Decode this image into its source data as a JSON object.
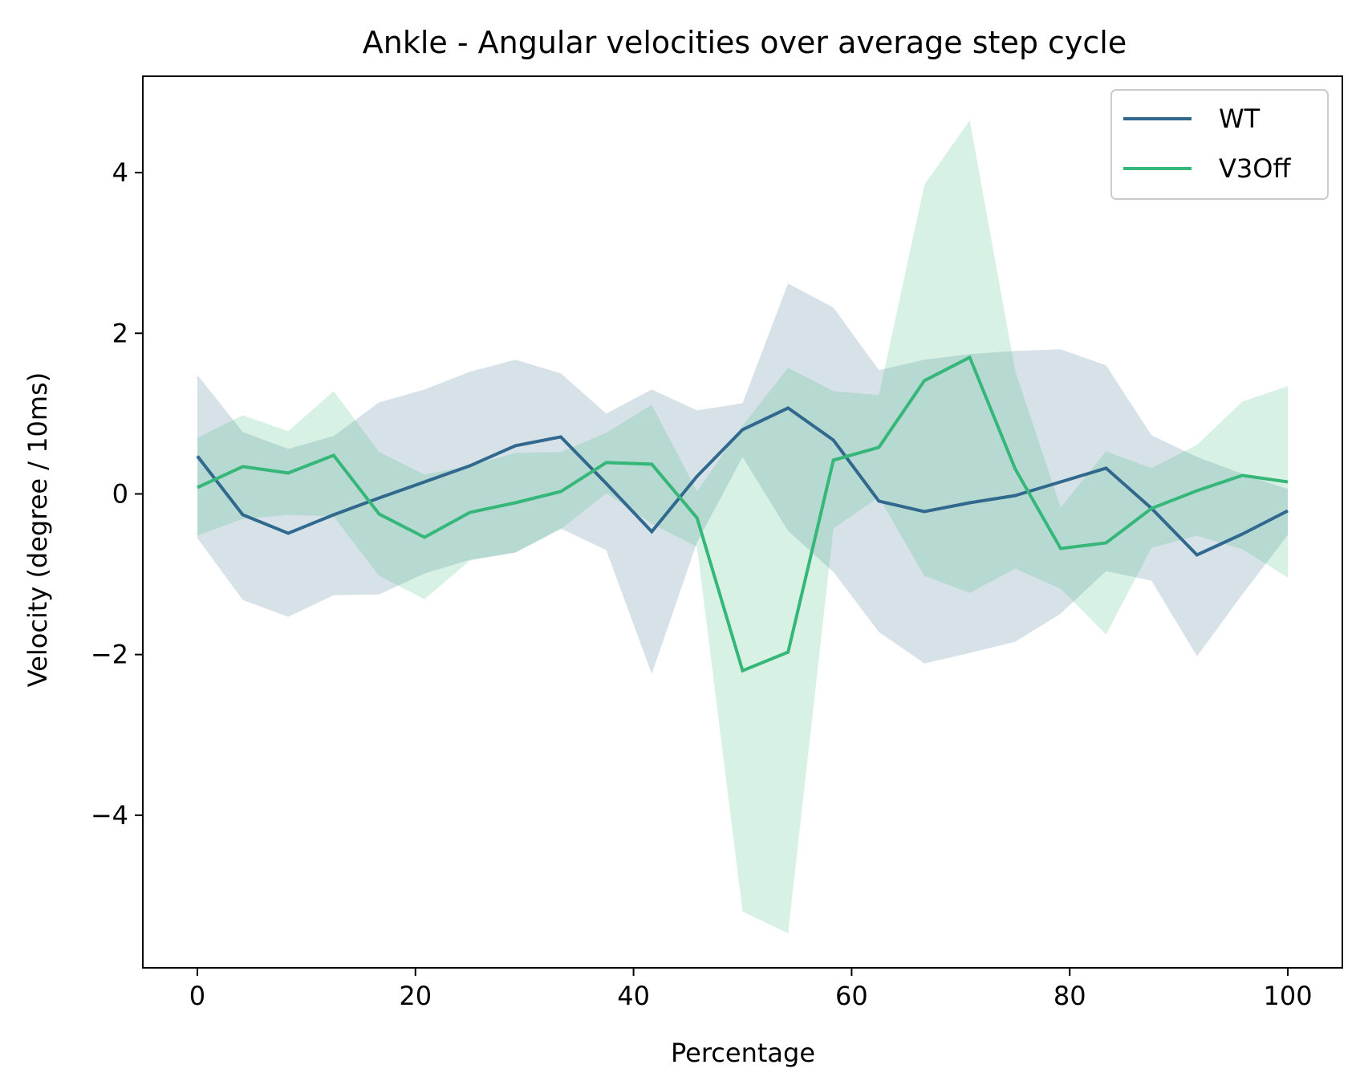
{
  "chart_data": {
    "type": "line",
    "title": "Ankle  - Angular velocities over average step cycle",
    "xlabel": "Percentage",
    "ylabel": "Velocity (degree / 10ms)",
    "xlim": [
      -5,
      105
    ],
    "ylim": [
      -5.9,
      5.2
    ],
    "xticks": [
      0,
      20,
      40,
      60,
      80,
      100
    ],
    "xtick_labels": [
      "0",
      "20",
      "40",
      "60",
      "80",
      "100"
    ],
    "yticks": [
      -4,
      -2,
      0,
      2,
      4
    ],
    "ytick_labels": [
      "−4",
      "−2",
      "0",
      "2",
      "4"
    ],
    "grid": false,
    "legend_position": "top-right",
    "x": [
      0,
      4.17,
      8.33,
      12.5,
      16.67,
      20.83,
      25,
      29.17,
      33.33,
      37.5,
      41.67,
      45.83,
      50,
      54.17,
      58.33,
      62.5,
      66.67,
      70.83,
      75,
      79.17,
      83.33,
      87.5,
      91.67,
      95.83,
      100
    ],
    "series": [
      {
        "name": "WT",
        "color": "#31688e",
        "values": [
          0.47,
          -0.26,
          -0.49,
          -0.26,
          -0.05,
          0.15,
          0.35,
          0.6,
          0.71,
          0.13,
          -0.47,
          0.22,
          0.8,
          1.07,
          0.67,
          -0.09,
          -0.22,
          -0.11,
          -0.02,
          0.15,
          0.32,
          -0.18,
          -0.76,
          -0.5,
          -0.21
        ],
        "upper": [
          1.48,
          0.77,
          0.56,
          0.72,
          1.14,
          1.3,
          1.52,
          1.67,
          1.5,
          1.0,
          1.3,
          1.04,
          1.13,
          2.62,
          2.32,
          1.54,
          1.67,
          1.74,
          1.78,
          1.8,
          1.6,
          0.73,
          0.46,
          0.25,
          0.06
        ],
        "lower": [
          -0.55,
          -1.32,
          -1.53,
          -1.26,
          -1.25,
          -0.99,
          -0.82,
          -0.73,
          -0.43,
          -0.7,
          -2.24,
          -0.6,
          0.46,
          -0.46,
          -0.97,
          -1.72,
          -2.11,
          -1.98,
          -1.84,
          -1.49,
          -0.96,
          -1.08,
          -2.02,
          -1.25,
          -0.51
        ]
      },
      {
        "name": "V3Off",
        "color": "#35b779",
        "values": [
          0.08,
          0.34,
          0.26,
          0.48,
          -0.25,
          -0.54,
          -0.23,
          -0.11,
          0.03,
          0.39,
          0.37,
          -0.3,
          -2.2,
          -1.97,
          0.42,
          0.58,
          1.41,
          1.7,
          0.31,
          -0.68,
          -0.61,
          -0.18,
          0.04,
          0.23,
          0.15
        ],
        "upper": [
          0.7,
          0.98,
          0.78,
          1.28,
          0.52,
          0.24,
          0.35,
          0.51,
          0.52,
          0.76,
          1.11,
          0.03,
          0.85,
          1.57,
          1.28,
          1.23,
          3.85,
          4.65,
          1.53,
          -0.17,
          0.53,
          0.32,
          0.61,
          1.15,
          1.34
        ],
        "lower": [
          -0.52,
          -0.31,
          -0.26,
          -0.28,
          -1.02,
          -1.31,
          -0.83,
          -0.73,
          -0.44,
          0.01,
          -0.37,
          -0.66,
          -5.2,
          -5.47,
          -0.43,
          -0.04,
          -1.02,
          -1.23,
          -0.93,
          -1.18,
          -1.75,
          -0.67,
          -0.52,
          -0.69,
          -1.04
        ]
      }
    ]
  }
}
